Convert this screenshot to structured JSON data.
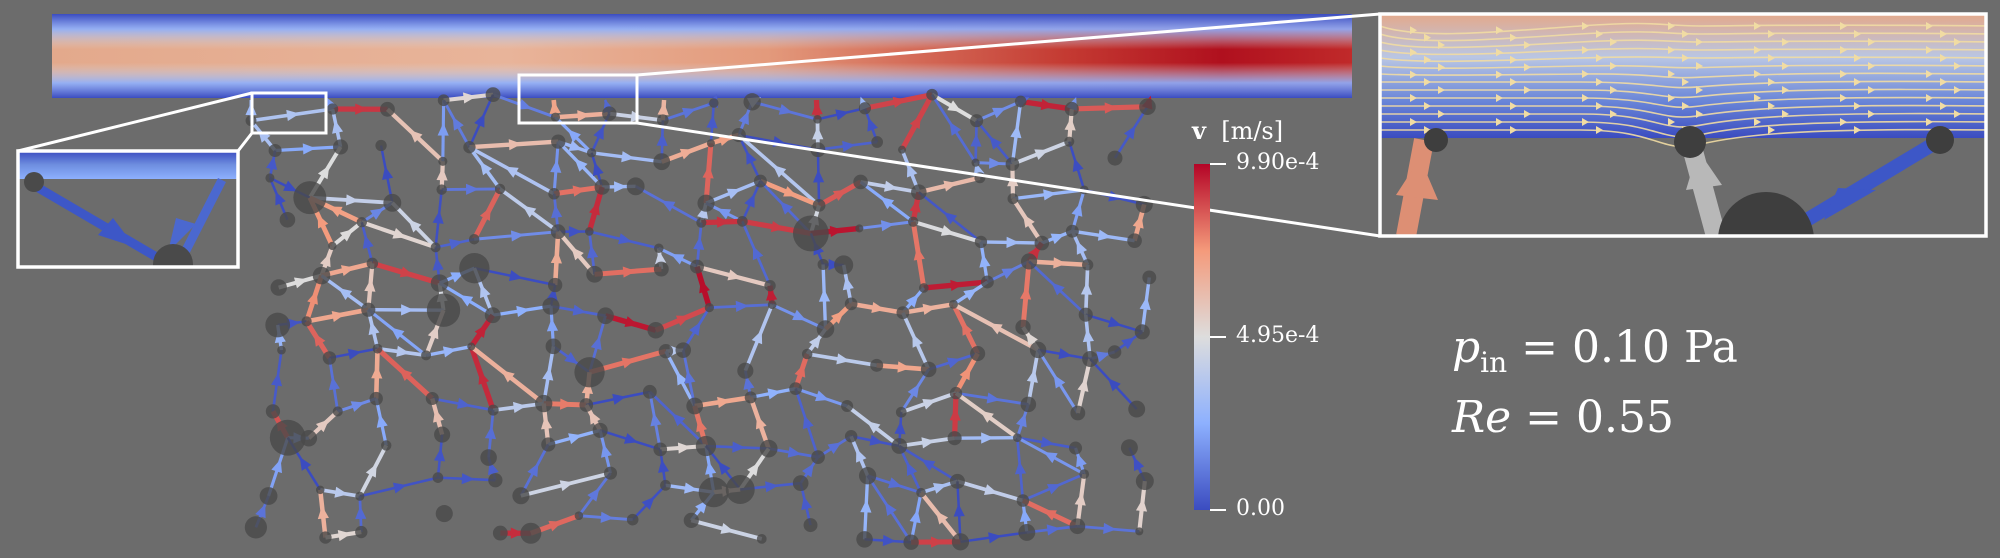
{
  "colorbar": {
    "variable": "v",
    "unit": "[m/s]",
    "max_label": "9.90e-4",
    "mid_label": "4.95e-4",
    "min_label": "0.00",
    "colors": [
      "#3b4cc0",
      "#8db0fe",
      "#dddddd",
      "#f49a7b",
      "#b40426"
    ]
  },
  "annotations": {
    "pressure_symbol": "p",
    "pressure_sub": "in",
    "pressure_value": "= 0.10 Pa",
    "reynolds_symbol": "Re",
    "reynolds_value": "= 0.55"
  },
  "colors": {
    "background": "#6c6c6c",
    "inset_frame": "#ffffff",
    "nodes": "#4a4a4a"
  }
}
